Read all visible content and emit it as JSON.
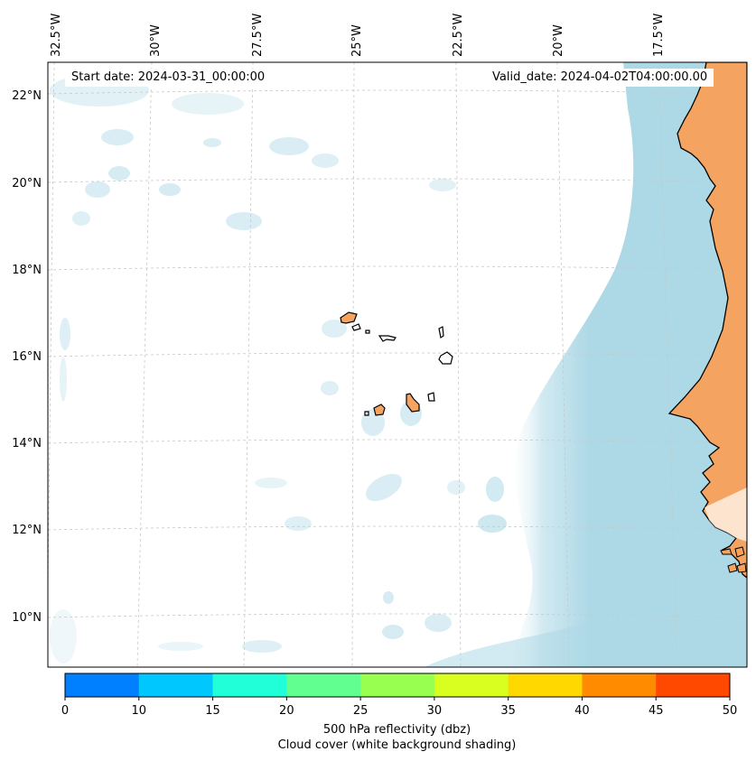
{
  "start_date": "Start date: 2024-03-31_00:00:00",
  "valid_date": "Valid_date: 2024-04-02T04:00:00.00",
  "longitude_labels": [
    "32.5°W",
    "30°W",
    "27.5°W",
    "25°W",
    "22.5°W",
    "20°W",
    "17.5°W"
  ],
  "latitude_labels": [
    "22°N",
    "20°N",
    "18°N",
    "16°N",
    "14°N",
    "12°N",
    "10°N"
  ],
  "colorbar": {
    "ticks": [
      "0",
      "10",
      "15",
      "20",
      "25",
      "30",
      "35",
      "40",
      "45",
      "50"
    ],
    "colors": [
      "#0080ff",
      "#00c8ff",
      "#20ffd8",
      "#60ff90",
      "#98ff50",
      "#d8ff20",
      "#ffd800",
      "#ff8c00",
      "#ff4800"
    ],
    "label": "500 hPa reflectivity (dbz)",
    "sublabel": "Cloud cover (white background shading)"
  },
  "colors": {
    "land": "#f4a460",
    "cloud": "#add8e6",
    "coastline": "#000000",
    "gridline": "#c8c8c8"
  }
}
